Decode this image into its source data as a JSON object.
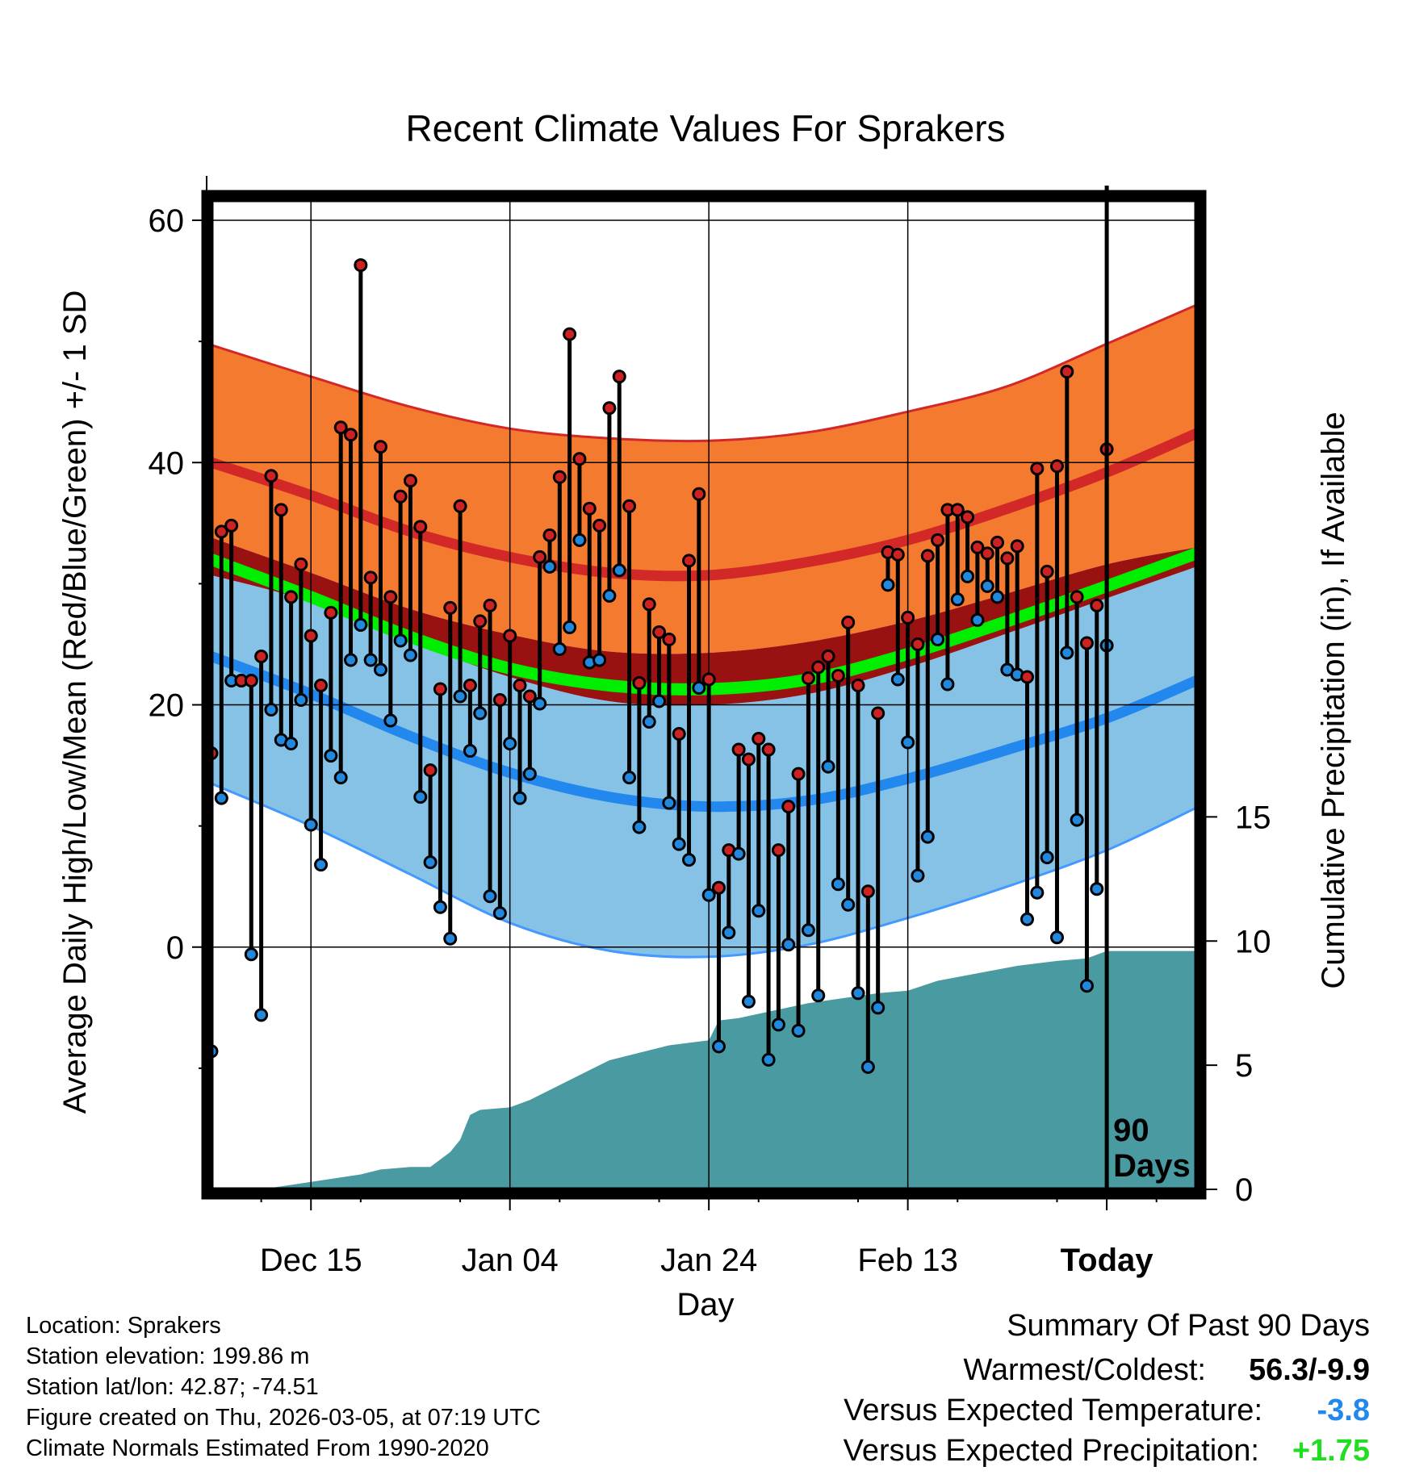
{
  "chart_data": {
    "type": "line",
    "title": "Recent Climate Values For Sprakers",
    "xlabel": "Day",
    "ylabel": "Average Daily High/Low/Mean (Red/Blue/Green) +/- 1 SD",
    "y2label": "Cumulative Precipitation (in), If Available",
    "ylim": [
      -20,
      62
    ],
    "y2lim": [
      0,
      40
    ],
    "xlim": [
      -90,
      9
    ],
    "yticks": [
      0,
      20,
      40,
      60
    ],
    "y2ticks": [
      0,
      5,
      10,
      15
    ],
    "xtick_labels": [
      {
        "day": -80,
        "label": "Dec 15"
      },
      {
        "day": -60,
        "label": "Jan 04"
      },
      {
        "day": -40,
        "label": "Jan 24"
      },
      {
        "day": -20,
        "label": "Feb 13"
      },
      {
        "day": 0,
        "label": "Today"
      }
    ],
    "today_marker": {
      "day": 0,
      "label_line1": "90",
      "label_line2": "Days"
    },
    "normals": {
      "x": [
        -90,
        -80,
        -70,
        -60,
        -50,
        -40,
        -30,
        -20,
        -10,
        0,
        9
      ],
      "high_mean": [
        40.0,
        37.3,
        34.3,
        32.2,
        30.9,
        30.7,
        31.8,
        33.6,
        36.2,
        39.2,
        42.4
      ],
      "high_plus_sd": [
        49.7,
        47.1,
        44.6,
        42.8,
        42.0,
        41.8,
        42.5,
        44.2,
        46.3,
        49.8,
        53.0
      ],
      "high_minus_sd": [
        33.8,
        30.9,
        27.9,
        25.8,
        24.4,
        24.3,
        25.2,
        26.9,
        29.2,
        31.6,
        33.0
      ],
      "low_mean": [
        24.0,
        20.9,
        17.4,
        14.4,
        12.4,
        11.6,
        12.1,
        13.9,
        16.3,
        18.9,
        22.0
      ],
      "low_plus_sd": [
        30.7,
        28.5,
        25.2,
        22.3,
        20.3,
        20.0,
        20.9,
        23.1,
        25.9,
        28.8,
        31.4
      ],
      "low_minus_sd": [
        13.5,
        10.0,
        6.0,
        2.0,
        -0.3,
        -0.8,
        0.2,
        2.4,
        5.0,
        8.0,
        11.5
      ],
      "mean": [
        32.0,
        28.9,
        25.6,
        23.0,
        21.6,
        21.3,
        22.1,
        24.2,
        26.9,
        29.8,
        32.5
      ]
    },
    "daily_high": [
      16.0,
      34.3,
      34.8,
      22.0,
      22.0,
      24.0,
      38.9,
      36.1,
      28.9,
      31.6,
      25.7,
      21.6,
      27.6,
      42.9,
      42.3,
      56.3,
      30.5,
      41.3,
      28.9,
      37.2,
      38.5,
      34.7,
      14.6,
      21.3,
      28.0,
      36.4,
      21.6,
      26.9,
      28.2,
      20.4,
      25.7,
      21.6,
      20.7,
      32.2,
      34.0,
      38.8,
      50.6,
      40.3,
      36.2,
      34.8,
      44.5,
      47.1,
      36.4,
      21.8,
      28.3,
      26.0,
      25.4,
      17.6,
      31.9,
      37.4,
      22.1,
      4.9,
      8.0,
      16.3,
      15.5,
      17.2,
      16.3,
      8.0,
      11.6,
      14.3,
      22.2,
      23.1,
      24.0,
      22.4,
      26.8,
      21.6,
      4.6,
      19.3,
      32.6,
      32.4,
      27.2,
      25.0,
      32.3,
      33.6,
      36.1,
      36.1,
      35.5,
      33.0,
      32.5,
      33.4,
      32.1,
      33.1,
      22.3,
      39.5,
      31.0,
      39.7,
      47.5,
      28.9,
      25.1,
      28.2,
      41.1
    ],
    "daily_low": [
      -8.6,
      12.3,
      22.0,
      22.0,
      -0.6,
      -5.6,
      19.6,
      17.1,
      16.8,
      20.4,
      10.1,
      6.8,
      15.8,
      14.0,
      23.7,
      26.6,
      23.7,
      22.9,
      18.7,
      25.3,
      24.1,
      12.4,
      7.0,
      3.3,
      0.7,
      20.7,
      16.2,
      19.3,
      4.2,
      2.8,
      16.8,
      12.3,
      14.3,
      20.1,
      31.4,
      24.6,
      26.4,
      33.6,
      23.5,
      23.7,
      29.0,
      31.1,
      14.0,
      9.9,
      18.6,
      20.3,
      11.9,
      8.5,
      7.2,
      21.4,
      4.3,
      -8.2,
      1.2,
      7.7,
      -4.5,
      3.0,
      -9.3,
      -6.4,
      0.2,
      -6.9,
      1.4,
      -4.0,
      14.9,
      5.2,
      3.5,
      -3.8,
      -9.9,
      -5.0,
      29.9,
      22.1,
      16.9,
      5.9,
      9.1,
      25.4,
      21.7,
      28.7,
      30.6,
      27.0,
      29.8,
      28.9,
      22.9,
      22.5,
      2.3,
      4.5,
      7.4,
      0.8,
      24.3,
      10.5,
      -3.2,
      4.8,
      24.9
    ],
    "precip_cumulative": {
      "x": [
        -90,
        -85,
        -80,
        -75,
        -73,
        -70,
        -68,
        -66,
        -65,
        -64,
        -63,
        -60,
        -58,
        -55,
        -52,
        -50,
        -47,
        -44,
        -40,
        -39,
        -37,
        -30,
        -23,
        -20,
        -17,
        -13,
        -9,
        -5,
        -2,
        0,
        9
      ],
      "y": [
        0,
        0,
        0.3,
        0.6,
        0.8,
        0.9,
        0.9,
        1.5,
        2.0,
        3.0,
        3.2,
        3.3,
        3.6,
        4.2,
        4.8,
        5.2,
        5.5,
        5.8,
        6.0,
        6.8,
        6.9,
        7.5,
        7.9,
        8.0,
        8.4,
        8.7,
        9.0,
        9.2,
        9.3,
        9.6,
        9.6
      ]
    }
  },
  "footer": {
    "location": "Location: Sprakers",
    "elevation": "Station elevation: 199.86 m",
    "latlon": "Station lat/lon: 42.87; -74.51",
    "created": "Figure created on Thu, 2026-03-05, at 07:19 UTC",
    "normals": "Climate Normals Estimated From 1990-2020"
  },
  "summary": {
    "heading": "Summary Of Past 90 Days",
    "warm_label": "Warmest/Coldest:",
    "warm_value": "56.3/-9.9",
    "temp_label": "Versus Expected Temperature:",
    "temp_value": "-3.8",
    "precip_label": "Versus Expected Precipitation:",
    "precip_value": "+1.75"
  },
  "colors": {
    "high_band": "#f47a30",
    "high_line": "#d32828",
    "low_band": "#86c1e6",
    "low_line": "#2288ee",
    "low_edge": "#4499ff",
    "overlap": "#991111",
    "mean_line": "#00ee00",
    "precip": "#4a9aa2",
    "marker_high": "#cc2222",
    "marker_low": "#2288dd",
    "temp_value": "#2288ee",
    "precip_value": "#22dd22"
  }
}
